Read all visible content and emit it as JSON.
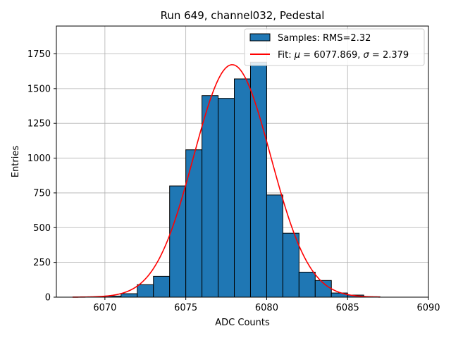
{
  "chart_data": {
    "type": "bar",
    "title": "Run 649, channel032, Pedestal",
    "xlabel": "ADC Counts",
    "ylabel": "Entries",
    "xlim": [
      6067,
      6090
    ],
    "ylim": [
      0,
      1950
    ],
    "xticks": [
      6070,
      6075,
      6080,
      6085,
      6090
    ],
    "yticks": [
      0,
      250,
      500,
      750,
      1000,
      1250,
      1500,
      1750
    ],
    "grid": true,
    "legend_position": "top-right",
    "histogram": {
      "name": "Samples: RMS=2.32",
      "color": "#1f77b4",
      "bin_edges": [
        6068,
        6069,
        6070,
        6071,
        6072,
        6073,
        6074,
        6075,
        6076,
        6077,
        6078,
        6079,
        6080,
        6081,
        6082,
        6083,
        6084,
        6085,
        6086,
        6087
      ],
      "counts": [
        0,
        2,
        8,
        25,
        90,
        150,
        800,
        1060,
        1450,
        1430,
        1570,
        1690,
        735,
        460,
        180,
        120,
        30,
        15,
        3
      ]
    },
    "fit": {
      "name_prefix": "Fit: ",
      "mu_symbol": "μ",
      "sigma_symbol": "σ",
      "mu": "6077.869",
      "sigma": "2.379",
      "color": "#ff0000",
      "amplitude": 1672,
      "x_range": [
        6068,
        6087
      ]
    }
  }
}
